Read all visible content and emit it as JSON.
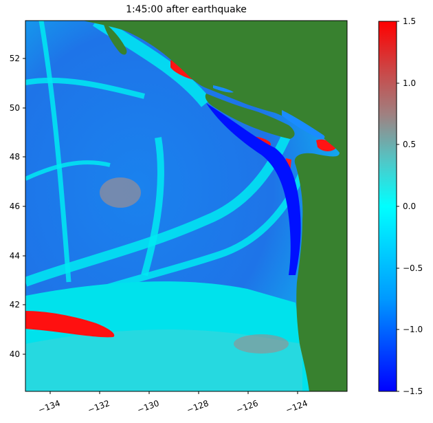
{
  "title": "1:45:00 after earthquake",
  "map": {
    "x_ticks": [
      "−134",
      "−132",
      "−130",
      "−128",
      "−126",
      "−124"
    ],
    "y_ticks": [
      "52",
      "50",
      "48",
      "46",
      "44",
      "42",
      "40"
    ],
    "lon_range": [
      -135.0,
      -122.0
    ],
    "lat_range": [
      38.5,
      53.5
    ],
    "land_color": "#38812f",
    "ocean_colors": {
      "deep_negative": "#1e6fe6",
      "near_zero": "#00e6ee",
      "positive": "#ff0000",
      "mid_positive": "#a08a8a"
    }
  },
  "colorbar": {
    "ticks": [
      "1.5",
      "1.0",
      "0.5",
      "0.0",
      "−0.5",
      "−1.0",
      "−1.5"
    ],
    "min": -1.5,
    "max": 1.5,
    "colormap": [
      "#0000ff",
      "#0099ff",
      "#00ffff",
      "#4fc8c8",
      "#a08080",
      "#d04040",
      "#ff0000"
    ]
  }
}
